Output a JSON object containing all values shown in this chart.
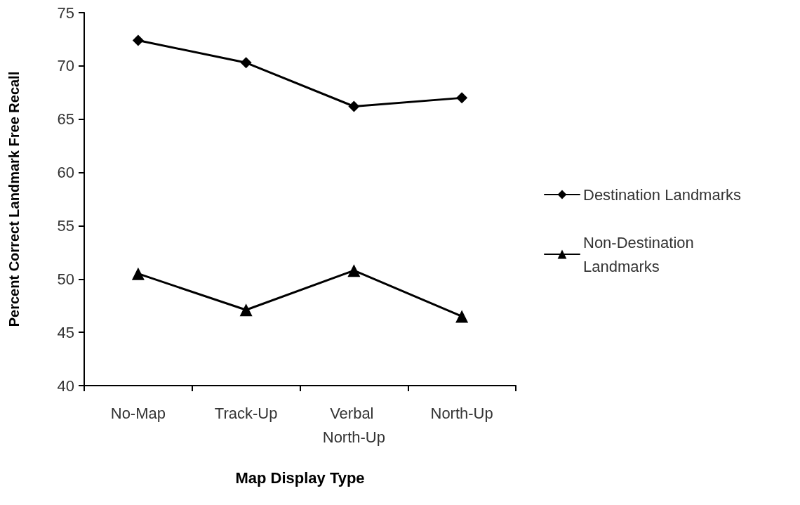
{
  "chart_data": {
    "type": "line",
    "xlabel": "Map Display Type",
    "ylabel": "Percent Correct Landmark Free Recall",
    "categories": [
      "No-Map",
      "Track-Up",
      "Verbal North-Up",
      "North-Up"
    ],
    "series": [
      {
        "name": "Destination Landmarks",
        "color": "#000000",
        "marker": "diamond",
        "values": [
          72.4,
          70.3,
          66.2,
          67.0
        ]
      },
      {
        "name": "Non-Destination Landmarks",
        "color": "#000000",
        "marker": "triangle",
        "values": [
          50.5,
          47.1,
          50.8,
          46.5
        ]
      }
    ],
    "ylim": [
      40,
      75
    ],
    "yticks": [
      40,
      45,
      50,
      55,
      60,
      65,
      70,
      75
    ],
    "grid": false,
    "legend": "right",
    "line_style": "solid"
  }
}
